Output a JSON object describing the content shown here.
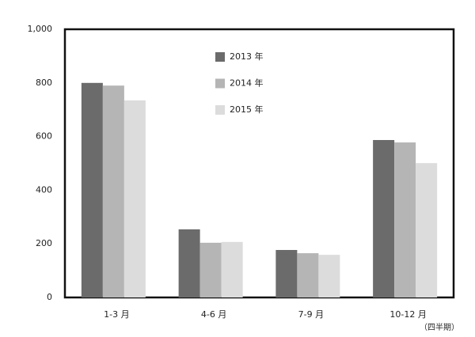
{
  "chart_data": {
    "type": "bar",
    "categories": [
      "1-3 月",
      "4-6 月",
      "7-9 月",
      "10-12 月"
    ],
    "series": [
      {
        "name": "2013 年",
        "color": "#6b6b6b",
        "values": [
          800,
          254,
          177,
          587
        ]
      },
      {
        "name": "2014 年",
        "color": "#b5b5b5",
        "values": [
          790,
          204,
          165,
          578
        ]
      },
      {
        "name": "2015 年",
        "color": "#dcdcdc",
        "values": [
          735,
          207,
          159,
          501
        ]
      }
    ],
    "ylim": [
      0,
      1000
    ],
    "yticks": [
      0,
      200,
      400,
      600,
      800,
      {
        "value": 1000,
        "label": "1,000"
      }
    ],
    "annotation": "（四半期）",
    "grid": false,
    "legend": "top"
  }
}
